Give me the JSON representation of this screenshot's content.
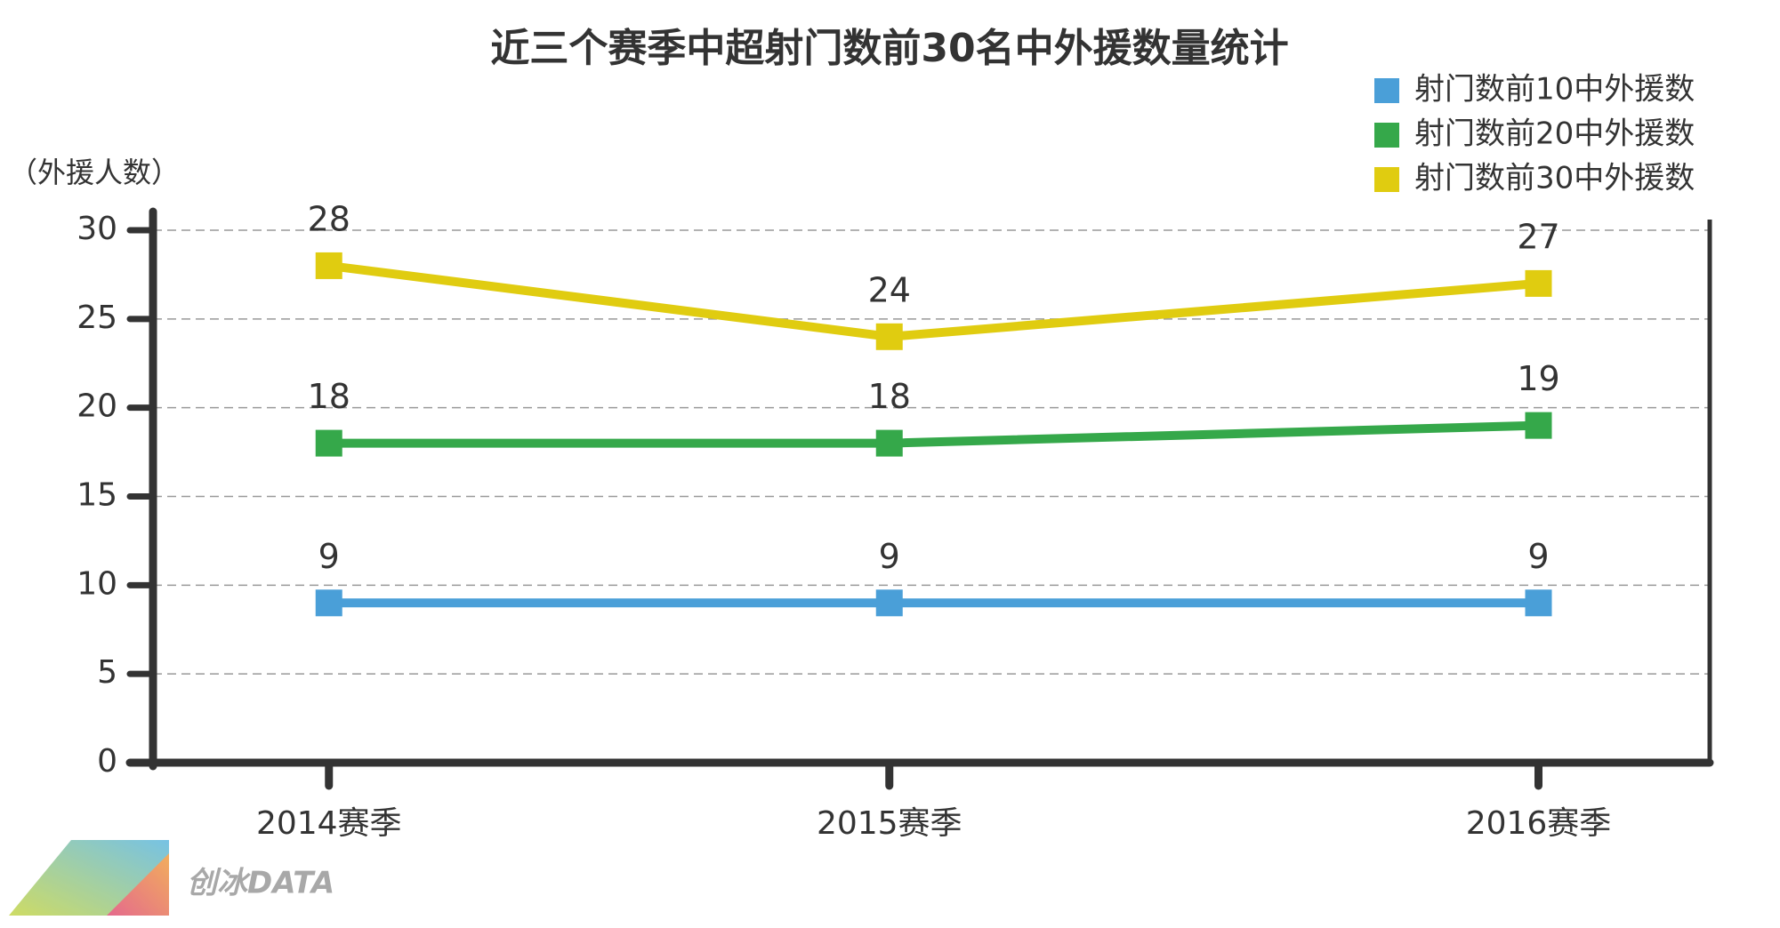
{
  "chart_data": {
    "type": "line",
    "title": "近三个赛季中超射门数前30名中外援数量统计",
    "y_label": "（外援人数）",
    "categories": [
      "2014赛季",
      "2015赛季",
      "2016赛季"
    ],
    "series": [
      {
        "name": "射门数前10中外援数",
        "color": "#4a9fd8",
        "values": [
          9,
          9,
          9
        ]
      },
      {
        "name": "射门数前20中外援数",
        "color": "#35a84a",
        "values": [
          18,
          18,
          19
        ]
      },
      {
        "name": "射门数前30中外援数",
        "color": "#e0cc10",
        "values": [
          28,
          24,
          27
        ]
      }
    ],
    "ylim": [
      0,
      30
    ],
    "yticks": [
      0,
      5,
      10,
      15,
      20,
      25,
      30
    ],
    "grid": true,
    "legend": "top-right",
    "watermark": "创冰DATA"
  }
}
